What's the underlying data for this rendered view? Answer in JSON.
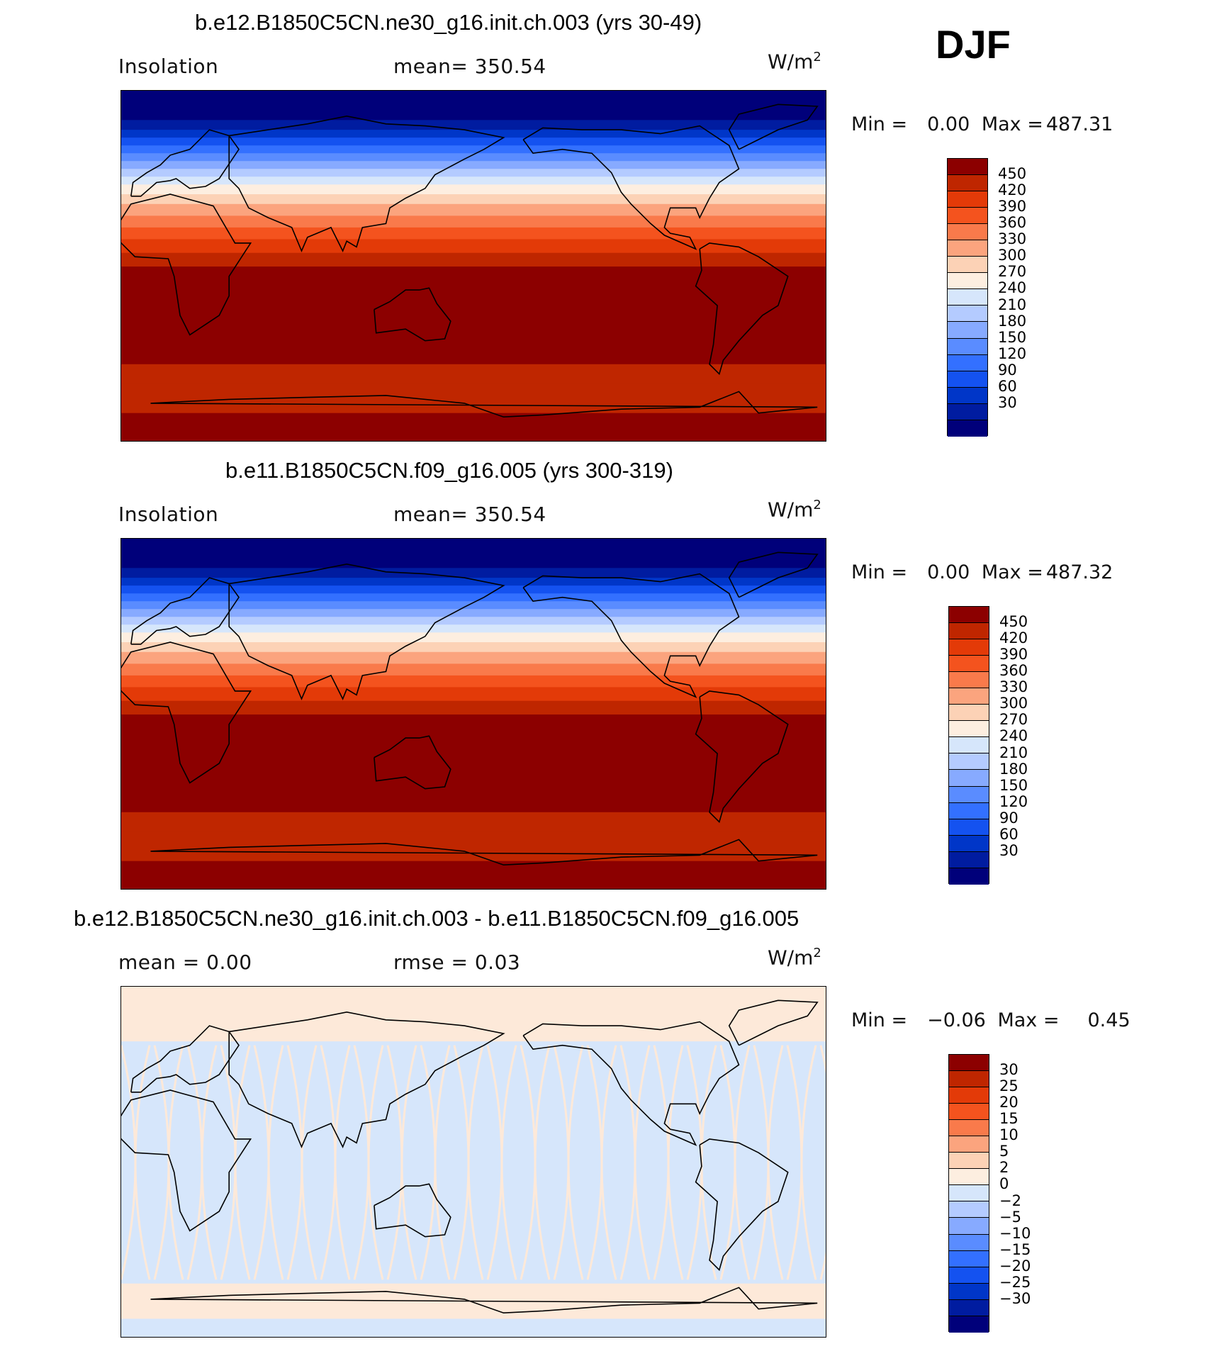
{
  "season": "DJF",
  "colors": {
    "insolation_scale": [
      "#00007a",
      "#001ca0",
      "#0036c8",
      "#1452f0",
      "#3370ff",
      "#5a8cff",
      "#87aaff",
      "#b4cbff",
      "#d6e6fb",
      "#fdeee0",
      "#fcd2b6",
      "#fba47e",
      "#f97a4b",
      "#f4531e",
      "#e33a08",
      "#bf2600",
      "#8c0000"
    ],
    "diff_scale": [
      "#00007a",
      "#001ca0",
      "#0036c8",
      "#1452f0",
      "#3370ff",
      "#5a8cff",
      "#87aaff",
      "#b4cbff",
      "#d6e6fb",
      "#fdeee0",
      "#fcd2b6",
      "#fba47e",
      "#f97a4b",
      "#f4531e",
      "#e33a08",
      "#bf2600",
      "#8c0000"
    ],
    "diff_pos": "#fde9d9",
    "diff_neg": "#d6e6fb"
  },
  "panels": [
    {
      "title": "b.e12.B1850C5CN.ne30_g16.init.ch.003 (yrs 30-49)",
      "left_label": "Insolation",
      "center_label": "mean=  350.54",
      "units": "W/m",
      "units_sup": "2",
      "min_label": "Min  =",
      "min_value": "0.00",
      "max_label": "Max  =",
      "max_value": "487.31",
      "ticks": [
        "450",
        "420",
        "390",
        "360",
        "330",
        "300",
        "270",
        "240",
        "210",
        "180",
        "150",
        "120",
        "90",
        "60",
        "30"
      ]
    },
    {
      "title": "b.e11.B1850C5CN.f09_g16.005 (yrs 300-319)",
      "left_label": "Insolation",
      "center_label": "mean=  350.54",
      "units": "W/m",
      "units_sup": "2",
      "min_label": "Min  =",
      "min_value": "0.00",
      "max_label": "Max  =",
      "max_value": "487.32",
      "ticks": [
        "450",
        "420",
        "390",
        "360",
        "330",
        "300",
        "270",
        "240",
        "210",
        "180",
        "150",
        "120",
        "90",
        "60",
        "30"
      ]
    },
    {
      "title": "b.e12.B1850C5CN.ne30_g16.init.ch.003 - b.e11.B1850C5CN.f09_g16.005",
      "left_label": "mean =     0.00",
      "center_label": "rmse =     0.03",
      "units": "W/m",
      "units_sup": "2",
      "min_label": "Min  =",
      "min_value": "−0.06",
      "max_label": "Max  =",
      "max_value": "0.45",
      "ticks": [
        "30",
        "25",
        "20",
        "15",
        "10",
        "5",
        "2",
        "0",
        "−2",
        "−5",
        "−10",
        "−15",
        "−20",
        "−25",
        "−30"
      ]
    }
  ],
  "insolation_profile": {
    "description_units": "latitude in degrees (north positive) to W/m2 class index (0=lowest, 16=highest)",
    "bands": [
      {
        "lat_top": 90,
        "lat_bottom": 75,
        "class": 0
      },
      {
        "lat_top": 75,
        "lat_bottom": 70,
        "class": 1
      },
      {
        "lat_top": 70,
        "lat_bottom": 66,
        "class": 2
      },
      {
        "lat_top": 66,
        "lat_bottom": 62,
        "class": 3
      },
      {
        "lat_top": 62,
        "lat_bottom": 58,
        "class": 4
      },
      {
        "lat_top": 58,
        "lat_bottom": 54,
        "class": 5
      },
      {
        "lat_top": 54,
        "lat_bottom": 50,
        "class": 6
      },
      {
        "lat_top": 50,
        "lat_bottom": 46,
        "class": 7
      },
      {
        "lat_top": 46,
        "lat_bottom": 42,
        "class": 8
      },
      {
        "lat_top": 42,
        "lat_bottom": 37,
        "class": 9
      },
      {
        "lat_top": 37,
        "lat_bottom": 32,
        "class": 10
      },
      {
        "lat_top": 32,
        "lat_bottom": 26,
        "class": 11
      },
      {
        "lat_top": 26,
        "lat_bottom": 20,
        "class": 12
      },
      {
        "lat_top": 20,
        "lat_bottom": 14,
        "class": 13
      },
      {
        "lat_top": 14,
        "lat_bottom": 7,
        "class": 14
      },
      {
        "lat_top": 7,
        "lat_bottom": 0,
        "class": 15
      },
      {
        "lat_top": 0,
        "lat_bottom": -50,
        "class": 16
      },
      {
        "lat_top": -50,
        "lat_bottom": -60,
        "class": 15
      },
      {
        "lat_top": -60,
        "lat_bottom": -75,
        "class": 15
      },
      {
        "lat_top": -75,
        "lat_bottom": -90,
        "class": 16
      }
    ]
  }
}
